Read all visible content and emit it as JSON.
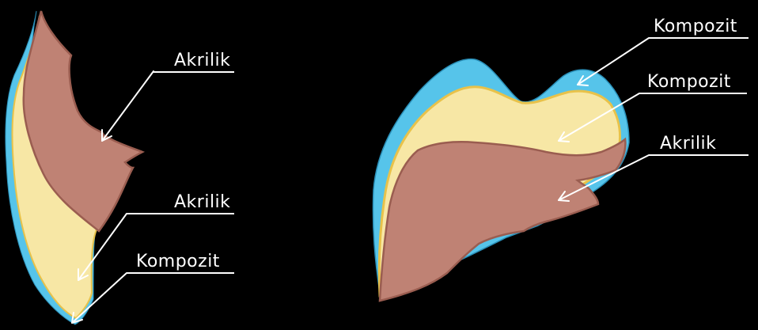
{
  "colors": {
    "background": "#000000",
    "composite_outer": "#56c4ea",
    "composite_inner": "#f7e7a5",
    "acrylic": "#bf8274",
    "label_text": "#ffffff"
  },
  "left_tooth": {
    "label_top": "Akrilik",
    "label_middle": "Akrilik",
    "label_bottom": "Kompozit"
  },
  "right_tooth": {
    "label_top": "Kompozit",
    "label_middle": "Kompozit",
    "label_bottom": "Akrilik"
  }
}
